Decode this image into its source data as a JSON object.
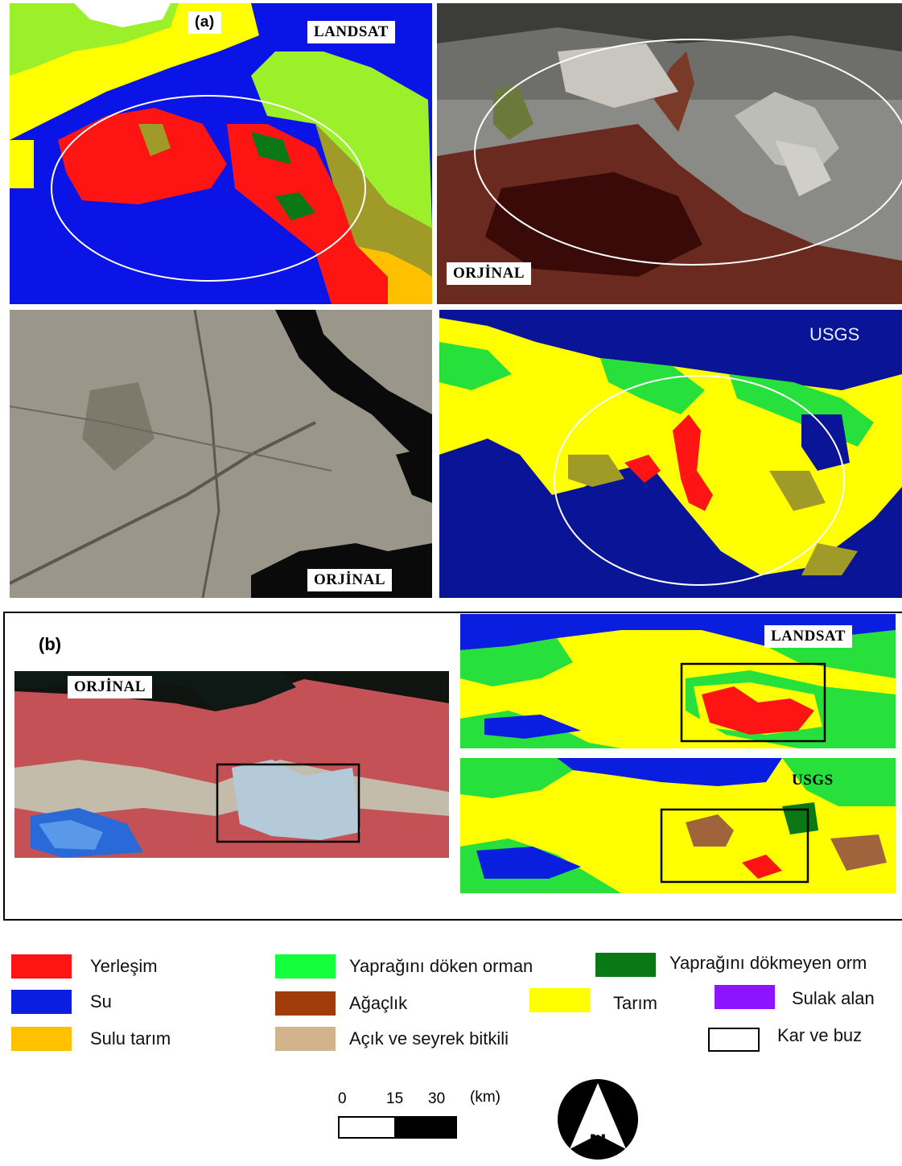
{
  "figure_a": {
    "letter": "(a)",
    "top_left_label": "LANDSAT",
    "top_right_label": "ORJİNAL",
    "bottom_left_label": "ORJİNAL",
    "bottom_right_label": "USGS"
  },
  "figure_b": {
    "letter": "(b)",
    "left_label": "ORJİNAL",
    "right_top_label": "LANDSAT",
    "right_bottom_label": "USGS"
  },
  "legend": [
    {
      "label": "Yerleşim",
      "color": "#ff1414"
    },
    {
      "label": "Su",
      "color": "#0a1ee0"
    },
    {
      "label": "Sulu tarım",
      "color": "#ffc000"
    },
    {
      "label": "Yaprağını döken orman",
      "color": "#14ff3c"
    },
    {
      "label": "Ağaçlık",
      "color": "#a03c0a"
    },
    {
      "label": "Açık ve seyrek bitkili",
      "color": "#d2b48c"
    },
    {
      "label": "Yaprağını dökmeyen orm",
      "color": "#0a7814"
    },
    {
      "label": "Tarım",
      "color": "#ffff00"
    },
    {
      "label": "Sulak alan",
      "color": "#8c14ff"
    },
    {
      "label": "Kar ve buz",
      "color": "#ffffff"
    }
  ],
  "scale": {
    "t0": "0",
    "t1": "15",
    "t2": "30",
    "unit": "(km)"
  },
  "north_arrow": {
    "letter": "N",
    "icon": "north-arrow-icon"
  }
}
